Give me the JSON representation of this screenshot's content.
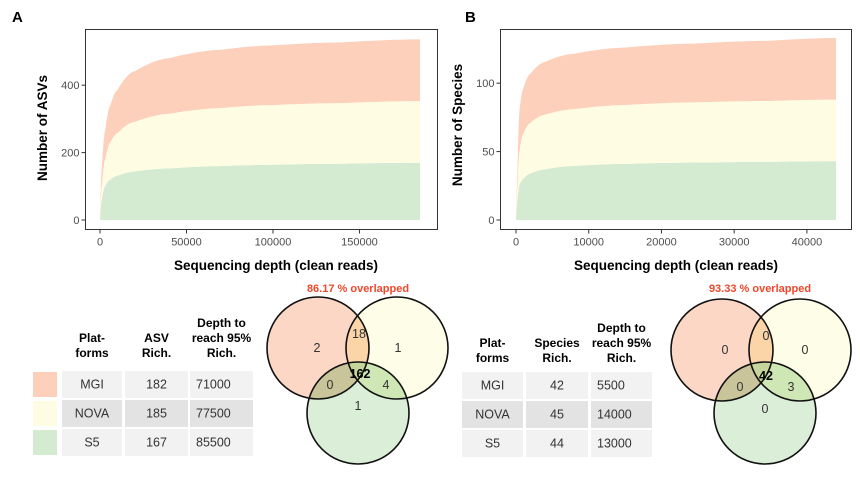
{
  "colors": {
    "MGI": "#fdd0bb",
    "NOVA": "#fefde3",
    "S5": "#d5ebd1",
    "venn_title": "#f0472b",
    "table_row_light": "#f2f2f2",
    "table_row_dark": "#e3e3e3"
  },
  "chart_data": [
    {
      "panel": "A",
      "type": "area",
      "title": "",
      "xlabel": "Sequencing depth (clean reads)",
      "ylabel": "Number of ASVs",
      "xlim": [
        0,
        185000
      ],
      "ylim": [
        0,
        540
      ],
      "xticks": [
        0,
        50000,
        100000,
        150000
      ],
      "xtick_labels": [
        "0",
        "50000",
        "100000",
        "150000"
      ],
      "yticks": [
        0,
        200,
        400
      ],
      "ytick_labels": [
        "0",
        "200",
        "400"
      ],
      "grid": false,
      "stacked": true,
      "series": [
        {
          "name": "S5",
          "x": [
            0,
            1000,
            3000,
            6000,
            10000,
            20000,
            40000,
            70000,
            100000,
            140000,
            185000
          ],
          "values": [
            0,
            60,
            100,
            120,
            131,
            144,
            153,
            160,
            164,
            167,
            170
          ]
        },
        {
          "name": "NOVA",
          "x": [
            0,
            1000,
            3000,
            6000,
            10000,
            20000,
            40000,
            70000,
            100000,
            140000,
            185000
          ],
          "values": [
            0,
            40,
            80,
            110,
            126,
            147,
            162,
            172,
            177,
            180,
            183
          ]
        },
        {
          "name": "MGI",
          "x": [
            0,
            1000,
            3000,
            6000,
            10000,
            20000,
            40000,
            70000,
            100000,
            140000,
            185000
          ],
          "values": [
            0,
            50,
            85,
            110,
            128,
            150,
            165,
            173,
            177,
            180,
            183
          ]
        }
      ]
    },
    {
      "panel": "B",
      "type": "area",
      "title": "",
      "xlabel": "Sequencing depth (clean reads)",
      "ylabel": "Number of Species",
      "xlim": [
        0,
        44000
      ],
      "ylim": [
        0,
        133
      ],
      "xticks": [
        0,
        10000,
        20000,
        30000,
        40000
      ],
      "xtick_labels": [
        "0",
        "10000",
        "20000",
        "30000",
        "40000"
      ],
      "yticks": [
        0,
        50,
        100
      ],
      "ytick_labels": [
        "0",
        "50",
        "100"
      ],
      "grid": false,
      "stacked": true,
      "series": [
        {
          "name": "S5",
          "x": [
            0,
            200,
            500,
            1000,
            2000,
            4000,
            8000,
            15000,
            25000,
            35000,
            44000
          ],
          "values": [
            0,
            15,
            26,
            30,
            34,
            37,
            39.5,
            41,
            42,
            42.5,
            43
          ]
        },
        {
          "name": "NOVA",
          "x": [
            0,
            200,
            500,
            1000,
            2000,
            4000,
            8000,
            15000,
            25000,
            35000,
            44000
          ],
          "values": [
            0,
            10,
            25,
            33,
            37,
            40,
            41.5,
            43,
            44,
            44.5,
            45
          ]
        },
        {
          "name": "MGI",
          "x": [
            0,
            200,
            500,
            1000,
            2000,
            4000,
            8000,
            15000,
            25000,
            35000,
            44000
          ],
          "values": [
            0,
            10,
            30,
            33,
            36,
            38.5,
            40.5,
            42,
            43,
            44,
            45
          ]
        }
      ]
    },
    {
      "panel": "A-table",
      "type": "table",
      "headers": [
        [
          "Plat-",
          "forms"
        ],
        [
          "ASV",
          "Rich."
        ],
        [
          "Depth to",
          "reach 95%",
          "Rich."
        ]
      ],
      "rows": [
        {
          "platform": "MGI",
          "richness": "182",
          "depth": "71000"
        },
        {
          "platform": "NOVA",
          "richness": "185",
          "depth": "77500"
        },
        {
          "platform": "S5",
          "richness": "167",
          "depth": "85500"
        }
      ]
    },
    {
      "panel": "B-table",
      "type": "table",
      "headers": [
        [
          "Plat-",
          "forms"
        ],
        [
          "Species",
          "Rich."
        ],
        [
          "Depth to",
          "reach 95%",
          "Rich."
        ]
      ],
      "rows": [
        {
          "platform": "MGI",
          "richness": "42",
          "depth": "5500"
        },
        {
          "platform": "NOVA",
          "richness": "45",
          "depth": "14000"
        },
        {
          "platform": "S5",
          "richness": "44",
          "depth": "13000"
        }
      ]
    },
    {
      "panel": "A-venn",
      "type": "venn",
      "title": "86.17 % overlapped",
      "sets": [
        "MGI",
        "NOVA",
        "S5"
      ],
      "regions": {
        "MGI_only": "2",
        "NOVA_only": "1",
        "S5_only": "1",
        "MGI_NOVA": "18",
        "MGI_S5": "0",
        "NOVA_S5": "4",
        "all": "162"
      }
    },
    {
      "panel": "B-venn",
      "type": "venn",
      "title": "93.33 % overlapped",
      "sets": [
        "MGI",
        "NOVA",
        "S5"
      ],
      "regions": {
        "MGI_only": "0",
        "NOVA_only": "0",
        "S5_only": "0",
        "MGI_NOVA": "0",
        "MGI_S5": "0",
        "NOVA_S5": "3",
        "all": "42"
      }
    }
  ],
  "panels": {
    "A": {
      "letter": "A"
    },
    "B": {
      "letter": "B"
    }
  }
}
